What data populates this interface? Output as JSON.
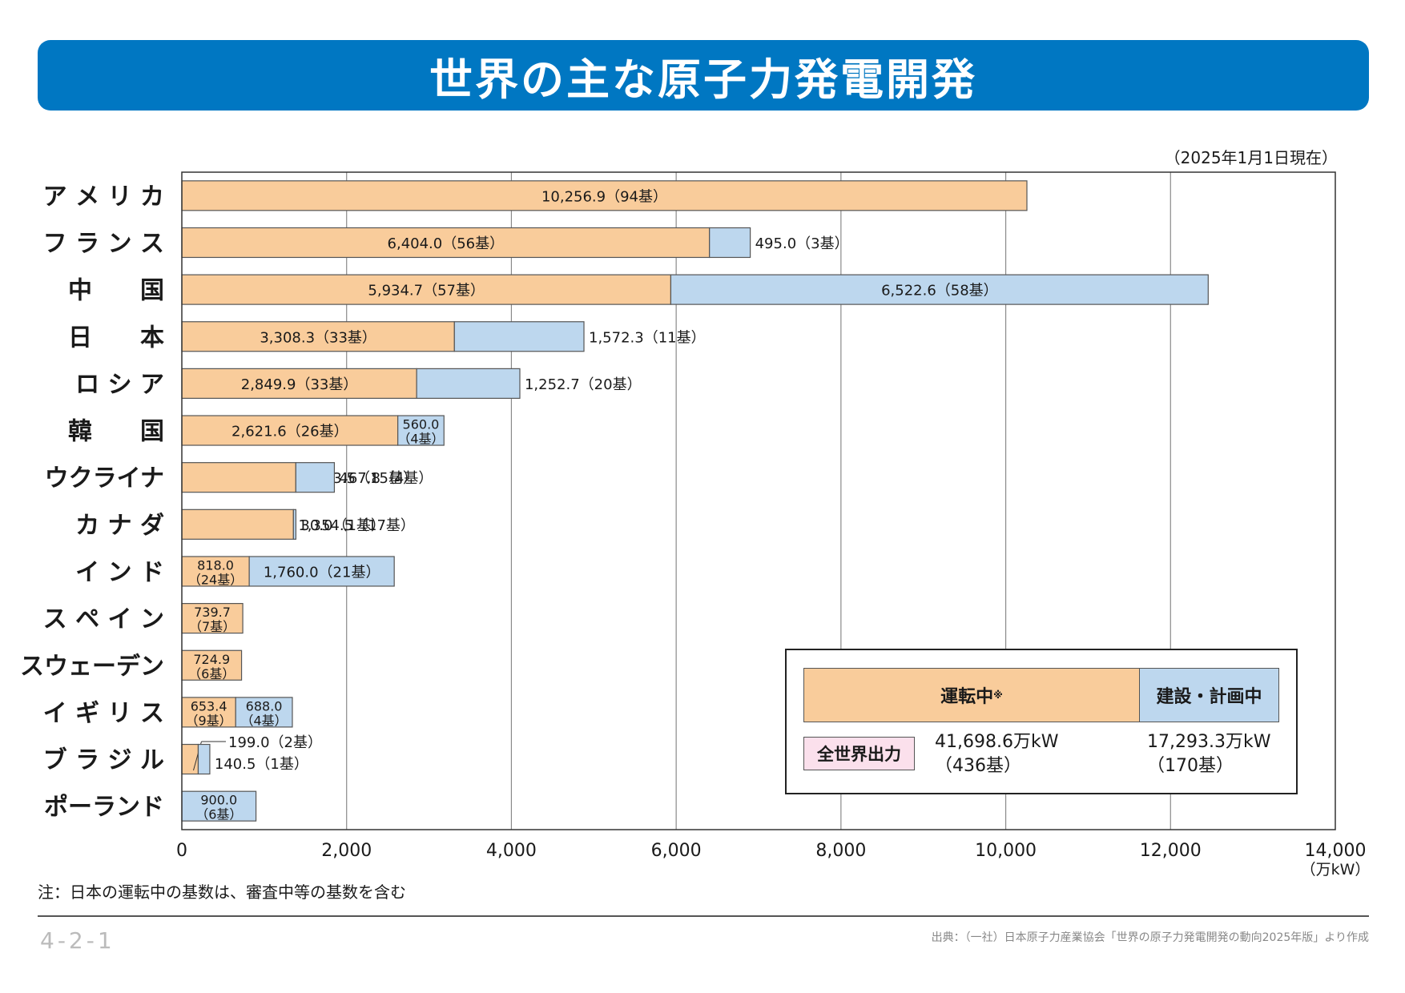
{
  "title": "世界の主な原子力発電開発",
  "as_of": "（2025年1月1日現在）",
  "note": "注：日本の運転中の基数は、審査中等の基数を含む",
  "page_number": "4-2-1",
  "source": "出典：（一社）日本原子力産業協会「世界の原子力発電開発の動向2025年版」より作成",
  "legend": {
    "operating_label": "運転中",
    "operating_mark": "※",
    "construction_label": "建設・計画中",
    "world_label": "全世界出力",
    "world_operating_value": "41,698.6万kW",
    "world_operating_units": "（436基）",
    "world_construction_value": "17,293.3万kW",
    "world_construction_units": "（170基）"
  },
  "colors": {
    "title_bg": "#0077c2",
    "operating": "#f9cc9b",
    "construction": "#bdd7ee",
    "world_label_bg": "#fbe0ec"
  },
  "chart_data": {
    "type": "bar",
    "orientation": "horizontal",
    "stacked": true,
    "xlim": [
      0,
      14000
    ],
    "x_ticks": [
      "0",
      "2,000",
      "4,000",
      "6,000",
      "8,000",
      "10,000",
      "12,000",
      "14,000"
    ],
    "x_unit": "（万kW）",
    "grid": true,
    "categories": [
      "アメリカ",
      "フランス",
      "中国",
      "日本",
      "ロシア",
      "韓国",
      "ウクライナ",
      "カナダ",
      "インド",
      "スペイン",
      "スウェーデン",
      "イギリス",
      "ブラジル",
      "ポーランド"
    ],
    "category_labels": [
      "ア メ リ カ",
      "フ ラ ン ス",
      "中　　国",
      "日　　本",
      "ロ シ ア",
      "韓　　国",
      "ウクライナ",
      "カ ナ ダ",
      "イ ン ド",
      "ス ペ イ ン",
      "スウェーデン",
      "イ ギ リ ス",
      "ブ ラ ジ ル",
      "ポーランド"
    ],
    "series": [
      {
        "name": "運転中",
        "values": [
          10256.9,
          6404.0,
          5934.7,
          3308.3,
          2849.9,
          2621.6,
          1383.5,
          1354.5,
          818.0,
          739.7,
          724.9,
          653.4,
          199.0,
          0
        ],
        "labels": [
          [
            "10,256.9（94基）"
          ],
          [
            "6,404.0（56基）"
          ],
          [
            "5,934.7（57基）"
          ],
          [
            "3,308.3（33基）"
          ],
          [
            "2,849.9（33基）"
          ],
          [
            "2,621.6（26基）"
          ],
          [
            "1,383.5（15基）"
          ],
          [
            "1,354.5（17基）"
          ],
          [
            "818.0",
            "（24基）"
          ],
          [
            "739.7",
            "（7基）"
          ],
          [
            "724.9",
            "（6基）"
          ],
          [
            "653.4",
            "（9基）"
          ],
          [
            "199.0（2基）"
          ],
          []
        ]
      },
      {
        "name": "建設・計画中",
        "values": [
          0,
          495.0,
          6522.6,
          1572.3,
          1252.7,
          560.0,
          467.8,
          30.0,
          1760.0,
          0,
          0,
          688.0,
          140.5,
          900.0
        ],
        "labels": [
          [],
          [
            "495.0（3基）"
          ],
          [
            "6,522.6（58基）"
          ],
          [
            "1,572.3（11基）"
          ],
          [
            "1,252.7（20基）"
          ],
          [
            "560.0",
            "（4基）"
          ],
          [
            "467.8（4基）"
          ],
          [
            "30.0（1基）"
          ],
          [
            "1,760.0（21基）"
          ],
          [],
          [],
          [
            "688.0",
            "（4基）"
          ],
          [
            "140.5（1基）"
          ],
          [
            "900.0",
            "（6基）"
          ]
        ]
      }
    ]
  }
}
